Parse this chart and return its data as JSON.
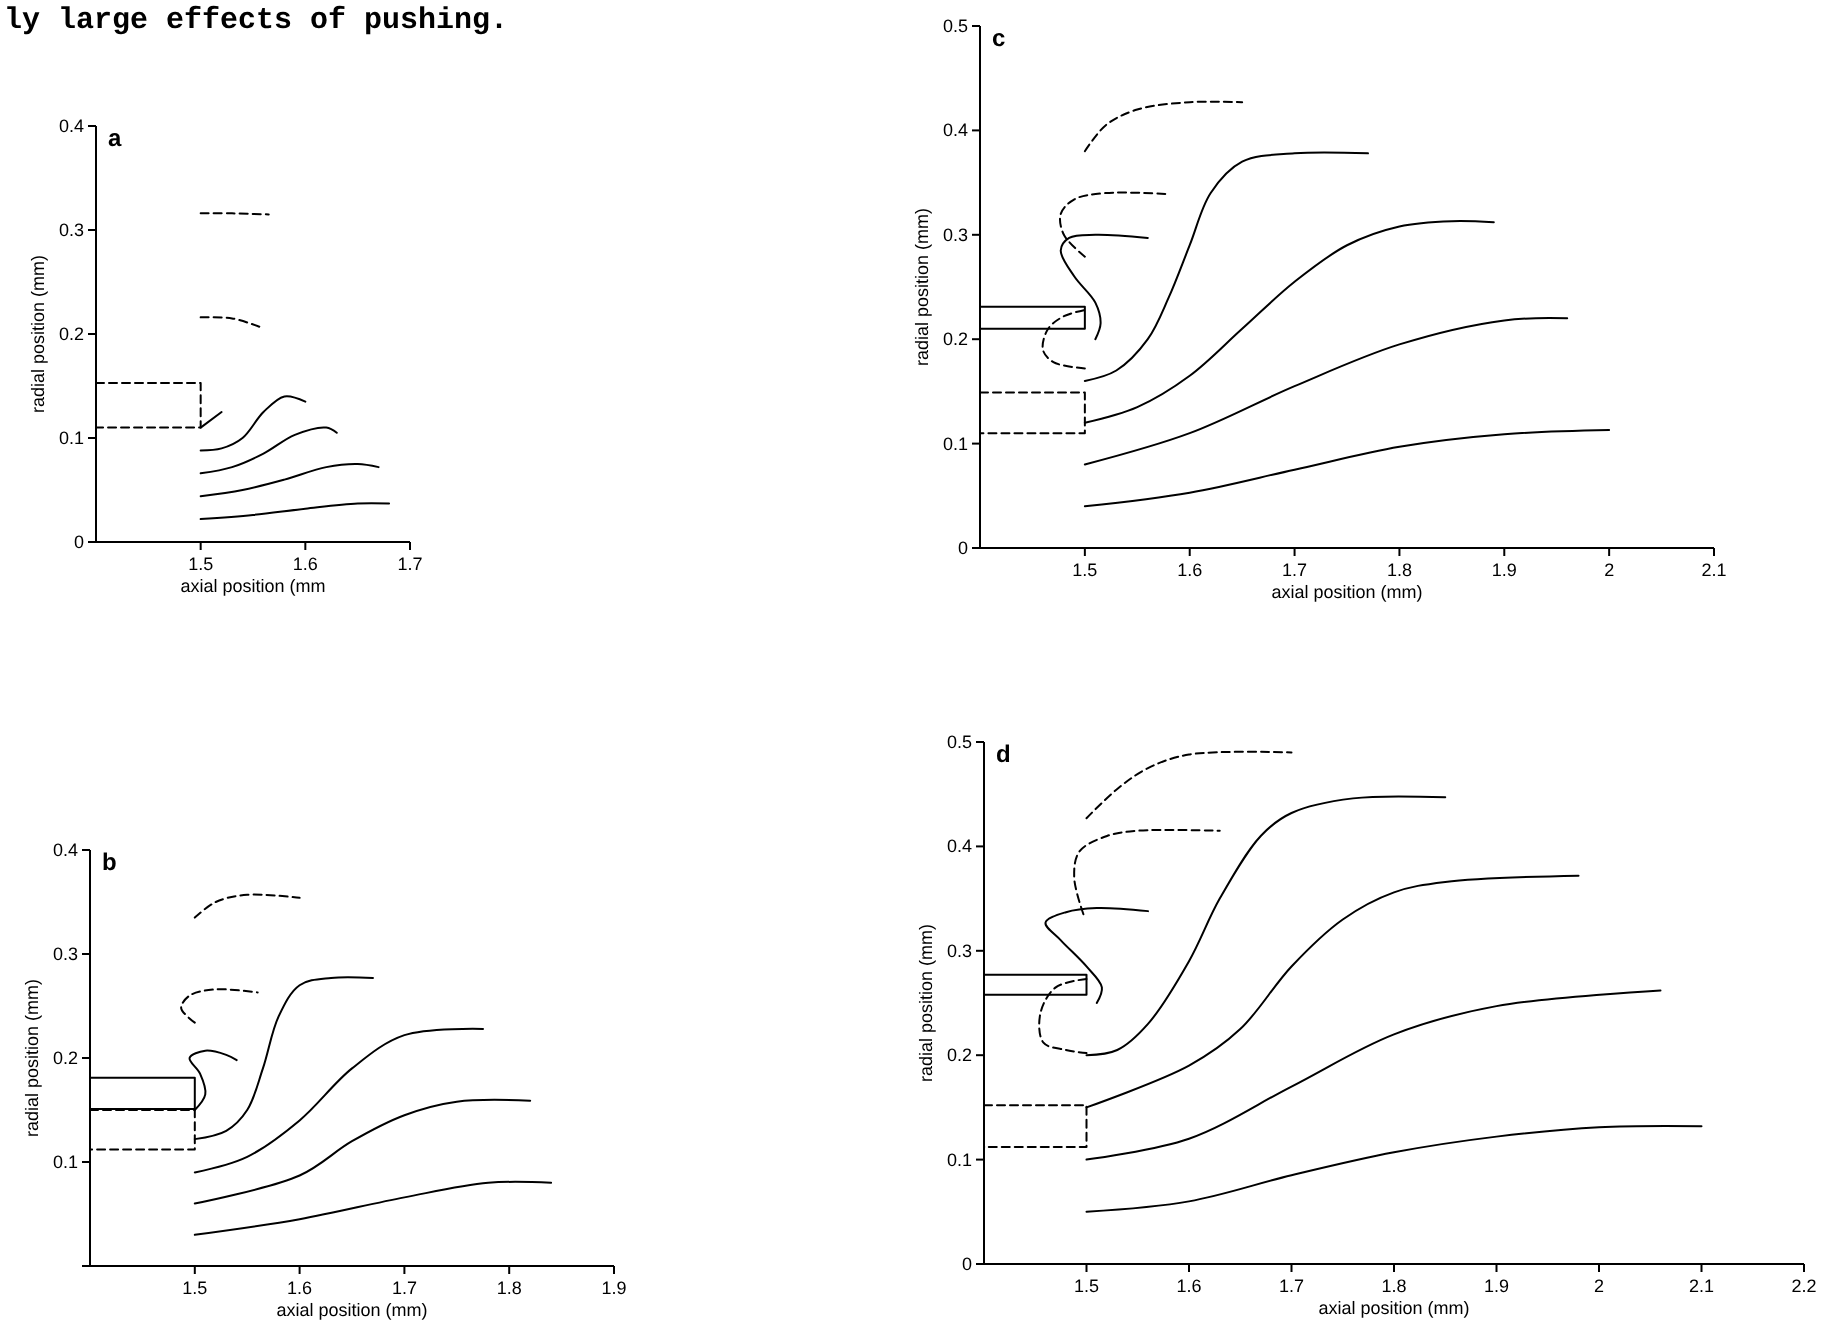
{
  "chart_data": [
    {
      "type": "line",
      "title": "a",
      "xlabel": "axial position (mm",
      "ylabel": "radial position (mm)",
      "xlim": [
        1.4,
        1.7
      ],
      "ylim": [
        0,
        0.4
      ],
      "xticks": [
        1.5,
        1.6,
        1.7
      ],
      "yticks": [
        0,
        0.1,
        0.2,
        0.3,
        0.4
      ],
      "annotations": [
        "ly large effects of pushing."
      ],
      "series": [
        {
          "type": "line",
          "line_style": "dashed",
          "x": [
            1.5,
            1.53,
            1.565
          ],
          "values": [
            0.316,
            0.316,
            0.315
          ]
        },
        {
          "type": "line",
          "line_style": "dashed",
          "x": [
            1.5,
            1.53,
            1.556
          ],
          "values": [
            0.216,
            0.215,
            0.207
          ]
        },
        {
          "type": "step",
          "line_style": "dashed",
          "x": [
            1.4,
            1.5,
            1.4
          ],
          "values": [
            0.153,
            0.11,
            0.11
          ]
        },
        {
          "type": "line",
          "line_style": "solid",
          "x": [
            1.5,
            1.52
          ],
          "values": [
            0.11,
            0.125
          ]
        },
        {
          "type": "line",
          "line_style": "solid",
          "x": [
            1.5,
            1.52,
            1.54,
            1.56,
            1.58,
            1.6
          ],
          "values": [
            0.088,
            0.09,
            0.1,
            0.125,
            0.14,
            0.135
          ]
        },
        {
          "type": "line",
          "line_style": "solid",
          "x": [
            1.5,
            1.53,
            1.56,
            1.59,
            1.62,
            1.63
          ],
          "values": [
            0.066,
            0.072,
            0.085,
            0.103,
            0.11,
            0.105
          ]
        },
        {
          "type": "line",
          "line_style": "solid",
          "x": [
            1.5,
            1.54,
            1.58,
            1.62,
            1.65,
            1.67
          ],
          "values": [
            0.044,
            0.05,
            0.06,
            0.072,
            0.075,
            0.072
          ]
        },
        {
          "type": "line",
          "line_style": "solid",
          "x": [
            1.5,
            1.55,
            1.6,
            1.65,
            1.68
          ],
          "values": [
            0.022,
            0.026,
            0.032,
            0.037,
            0.037
          ]
        }
      ]
    },
    {
      "type": "line",
      "title": "c",
      "xlabel": "axial position (mm)",
      "ylabel": "radial position (mm)",
      "xlim": [
        1.4,
        2.1
      ],
      "ylim": [
        0,
        0.5
      ],
      "xticks": [
        1.5,
        1.6,
        1.7,
        1.8,
        1.9,
        2.0,
        2.1
      ],
      "yticks": [
        0,
        0.1,
        0.2,
        0.3,
        0.4,
        0.5
      ],
      "series": [
        {
          "type": "step",
          "line_style": "solid",
          "x": [
            1.4,
            1.5,
            1.4
          ],
          "values": [
            0.231,
            0.21,
            0.21
          ]
        },
        {
          "type": "step",
          "line_style": "dashed",
          "x": [
            1.4,
            1.5,
            1.4
          ],
          "values": [
            0.149,
            0.11,
            0.11
          ]
        },
        {
          "type": "line",
          "line_style": "dashed",
          "x": [
            1.5,
            1.52,
            1.55,
            1.6,
            1.65
          ],
          "values": [
            0.38,
            0.405,
            0.42,
            0.427,
            0.427
          ]
        },
        {
          "type": "line",
          "line_style": "dashed",
          "x": [
            1.5,
            1.48,
            1.477,
            1.49,
            1.52,
            1.58
          ],
          "values": [
            0.279,
            0.3,
            0.32,
            0.334,
            0.34,
            0.339
          ]
        },
        {
          "type": "line",
          "line_style": "solid",
          "x": [
            1.51,
            1.515,
            1.51,
            1.49,
            1.477,
            1.485,
            1.51,
            1.56
          ],
          "values": [
            0.2,
            0.215,
            0.235,
            0.26,
            0.285,
            0.297,
            0.3,
            0.297
          ]
        },
        {
          "type": "line",
          "line_style": "dashed",
          "x": [
            1.5,
            1.47,
            1.46,
            1.465,
            1.48,
            1.5
          ],
          "values": [
            0.172,
            0.178,
            0.19,
            0.21,
            0.222,
            0.228
          ]
        },
        {
          "type": "line",
          "line_style": "solid",
          "x": [
            1.5,
            1.53,
            1.56,
            1.58,
            1.6,
            1.62,
            1.65,
            1.7,
            1.77
          ],
          "values": [
            0.16,
            0.17,
            0.2,
            0.24,
            0.29,
            0.34,
            0.37,
            0.378,
            0.378
          ]
        },
        {
          "type": "line",
          "line_style": "solid",
          "x": [
            1.5,
            1.55,
            1.6,
            1.65,
            1.7,
            1.75,
            1.8,
            1.85,
            1.89
          ],
          "values": [
            0.12,
            0.135,
            0.165,
            0.21,
            0.255,
            0.29,
            0.308,
            0.313,
            0.312
          ]
        },
        {
          "type": "line",
          "line_style": "solid",
          "x": [
            1.5,
            1.6,
            1.7,
            1.8,
            1.9,
            1.96
          ],
          "values": [
            0.08,
            0.11,
            0.155,
            0.195,
            0.218,
            0.22
          ]
        },
        {
          "type": "line",
          "line_style": "solid",
          "x": [
            1.5,
            1.6,
            1.7,
            1.8,
            1.9,
            2.0
          ],
          "values": [
            0.04,
            0.053,
            0.075,
            0.097,
            0.109,
            0.113
          ]
        }
      ]
    },
    {
      "type": "line",
      "title": "b",
      "xlabel": "axial position (mm)",
      "ylabel": "radial position (mm)",
      "xlim": [
        1.4,
        1.9
      ],
      "ylim": [
        0,
        0.4
      ],
      "xticks": [
        1.5,
        1.6,
        1.7,
        1.8,
        1.9
      ],
      "yticks": [
        {
          "value": 0,
          "label": null
        },
        0.1,
        0.2,
        0.3,
        0.4
      ],
      "series": [
        {
          "type": "step",
          "line_style": "solid",
          "x": [
            1.4,
            1.5,
            1.4
          ],
          "values": [
            0.181,
            0.151,
            0.151
          ]
        },
        {
          "type": "step",
          "line_style": "dashed",
          "x": [
            1.4,
            1.5,
            1.4
          ],
          "values": [
            0.15,
            0.112,
            0.112
          ]
        },
        {
          "type": "line",
          "line_style": "solid",
          "x": [
            1.5,
            1.51,
            1.505,
            1.495,
            1.51,
            1.53,
            1.54
          ],
          "values": [
            0.15,
            0.165,
            0.185,
            0.2,
            0.207,
            0.203,
            0.198
          ]
        },
        {
          "type": "line",
          "line_style": "dashed",
          "x": [
            1.5,
            1.52,
            1.55,
            1.6
          ],
          "values": [
            0.335,
            0.35,
            0.357,
            0.354
          ]
        },
        {
          "type": "line",
          "line_style": "dashed",
          "x": [
            1.5,
            1.487,
            1.495,
            1.52,
            1.56
          ],
          "values": [
            0.234,
            0.248,
            0.26,
            0.266,
            0.263
          ]
        },
        {
          "type": "line",
          "line_style": "solid",
          "x": [
            1.5,
            1.53,
            1.55,
            1.565,
            1.58,
            1.6,
            1.63,
            1.67
          ],
          "values": [
            0.122,
            0.13,
            0.15,
            0.19,
            0.24,
            0.27,
            0.277,
            0.277
          ]
        },
        {
          "type": "line",
          "line_style": "solid",
          "x": [
            1.5,
            1.55,
            1.6,
            1.65,
            1.7,
            1.775
          ],
          "values": [
            0.09,
            0.105,
            0.14,
            0.19,
            0.222,
            0.228
          ]
        },
        {
          "type": "line",
          "line_style": "solid",
          "x": [
            1.5,
            1.6,
            1.65,
            1.7,
            1.75,
            1.82
          ],
          "values": [
            0.06,
            0.087,
            0.12,
            0.145,
            0.158,
            0.159
          ]
        },
        {
          "type": "line",
          "line_style": "solid",
          "x": [
            1.5,
            1.6,
            1.7,
            1.78,
            1.84
          ],
          "values": [
            0.03,
            0.045,
            0.066,
            0.08,
            0.08
          ]
        }
      ]
    },
    {
      "type": "line",
      "title": "d",
      "xlabel": "axial position (mm)",
      "ylabel": "radial position (mm)",
      "xlim": [
        1.4,
        2.2
      ],
      "ylim": [
        0,
        0.5
      ],
      "xticks": [
        1.5,
        1.6,
        1.7,
        1.8,
        1.9,
        2.0,
        2.1,
        2.2
      ],
      "yticks": [
        0,
        0.1,
        0.2,
        0.3,
        0.4,
        0.5
      ],
      "series": [
        {
          "type": "step",
          "line_style": "solid",
          "x": [
            1.4,
            1.5,
            1.4
          ],
          "values": [
            0.277,
            0.258,
            0.258
          ]
        },
        {
          "type": "step",
          "line_style": "dashed",
          "x": [
            1.4,
            1.5,
            1.4
          ],
          "values": [
            0.152,
            0.112,
            0.112
          ]
        },
        {
          "type": "line",
          "line_style": "dashed",
          "x": [
            1.5,
            1.53,
            1.56,
            1.6,
            1.7
          ],
          "values": [
            0.427,
            0.455,
            0.475,
            0.488,
            0.49
          ]
        },
        {
          "type": "line",
          "line_style": "dashed",
          "x": [
            1.497,
            1.488,
            1.493,
            1.52,
            1.55,
            1.63
          ],
          "values": [
            0.335,
            0.37,
            0.395,
            0.41,
            0.415,
            0.415
          ]
        },
        {
          "type": "line",
          "line_style": "solid",
          "x": [
            1.51,
            1.515,
            1.5,
            1.475,
            1.46,
            1.48,
            1.51,
            1.56
          ],
          "values": [
            0.25,
            0.265,
            0.285,
            0.31,
            0.327,
            0.337,
            0.341,
            0.338
          ]
        },
        {
          "type": "line",
          "line_style": "dashed",
          "x": [
            1.5,
            1.47,
            1.455,
            1.458,
            1.48,
            1.5
          ],
          "values": [
            0.273,
            0.265,
            0.24,
            0.212,
            0.205,
            0.202
          ]
        },
        {
          "type": "line",
          "line_style": "solid",
          "x": [
            1.5,
            1.53,
            1.56,
            1.6,
            1.63,
            1.67,
            1.7,
            1.76,
            1.85
          ],
          "values": [
            0.2,
            0.205,
            0.23,
            0.29,
            0.35,
            0.41,
            0.432,
            0.446,
            0.447
          ]
        },
        {
          "type": "line",
          "line_style": "solid",
          "x": [
            1.5,
            1.6,
            1.65,
            1.7,
            1.75,
            1.8,
            1.85,
            1.98
          ],
          "values": [
            0.15,
            0.19,
            0.225,
            0.285,
            0.33,
            0.356,
            0.366,
            0.372
          ]
        },
        {
          "type": "line",
          "line_style": "solid",
          "x": [
            1.5,
            1.6,
            1.7,
            1.8,
            1.9,
            2.06
          ],
          "values": [
            0.1,
            0.12,
            0.17,
            0.22,
            0.247,
            0.262
          ]
        },
        {
          "type": "line",
          "line_style": "solid",
          "x": [
            1.5,
            1.6,
            1.7,
            1.8,
            1.9,
            2.0,
            2.1
          ],
          "values": [
            0.05,
            0.06,
            0.085,
            0.107,
            0.122,
            0.131,
            0.132
          ]
        }
      ]
    }
  ]
}
